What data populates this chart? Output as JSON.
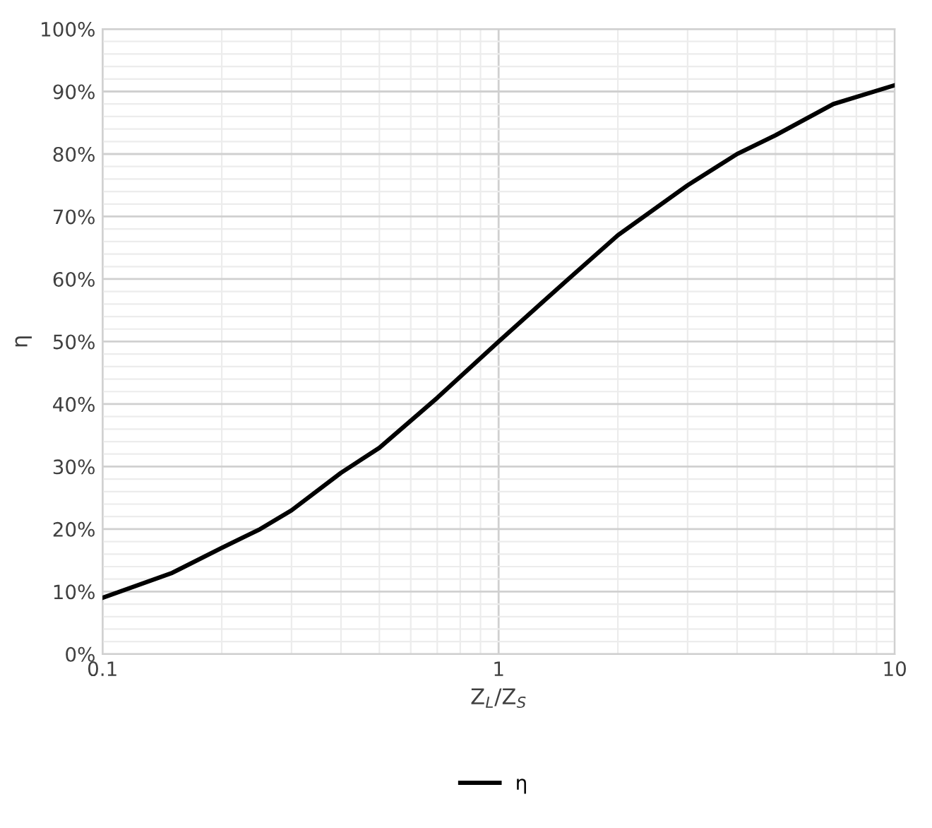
{
  "chart_data": {
    "type": "line",
    "xlabel": "Z$_{L}$/Z$_{S}$",
    "ylabel": "η",
    "log": "x",
    "grid": true,
    "legend": "bottom",
    "marker": "none",
    "line_style": "solid",
    "xlim": [
      0.1,
      10
    ],
    "xticks": [
      0.1,
      1,
      10
    ],
    "ylim": [
      0,
      100
    ],
    "yticks": [
      {
        "value": 0,
        "label": "0%"
      },
      {
        "value": 10,
        "label": "10%"
      },
      {
        "value": 20,
        "label": "20%"
      },
      {
        "value": 30,
        "label": "30%"
      },
      {
        "value": 40,
        "label": "40%"
      },
      {
        "value": 50,
        "label": "50%"
      },
      {
        "value": 60,
        "label": "60%"
      },
      {
        "value": 70,
        "label": "70%"
      },
      {
        "value": 80,
        "label": "80%"
      },
      {
        "value": 90,
        "label": "90%"
      },
      {
        "value": 100,
        "label": "100%"
      }
    ],
    "series": [
      {
        "name": "η",
        "color": "#000000",
        "x": [
          0.1,
          0.15,
          0.2,
          0.25,
          0.3,
          0.4,
          0.5,
          0.7,
          1,
          1.5,
          2,
          3,
          4,
          5,
          7,
          10
        ],
        "values": [
          9,
          13,
          17,
          20,
          23,
          29,
          33,
          41,
          50,
          60,
          67,
          75,
          80,
          83,
          88,
          91
        ]
      }
    ]
  }
}
